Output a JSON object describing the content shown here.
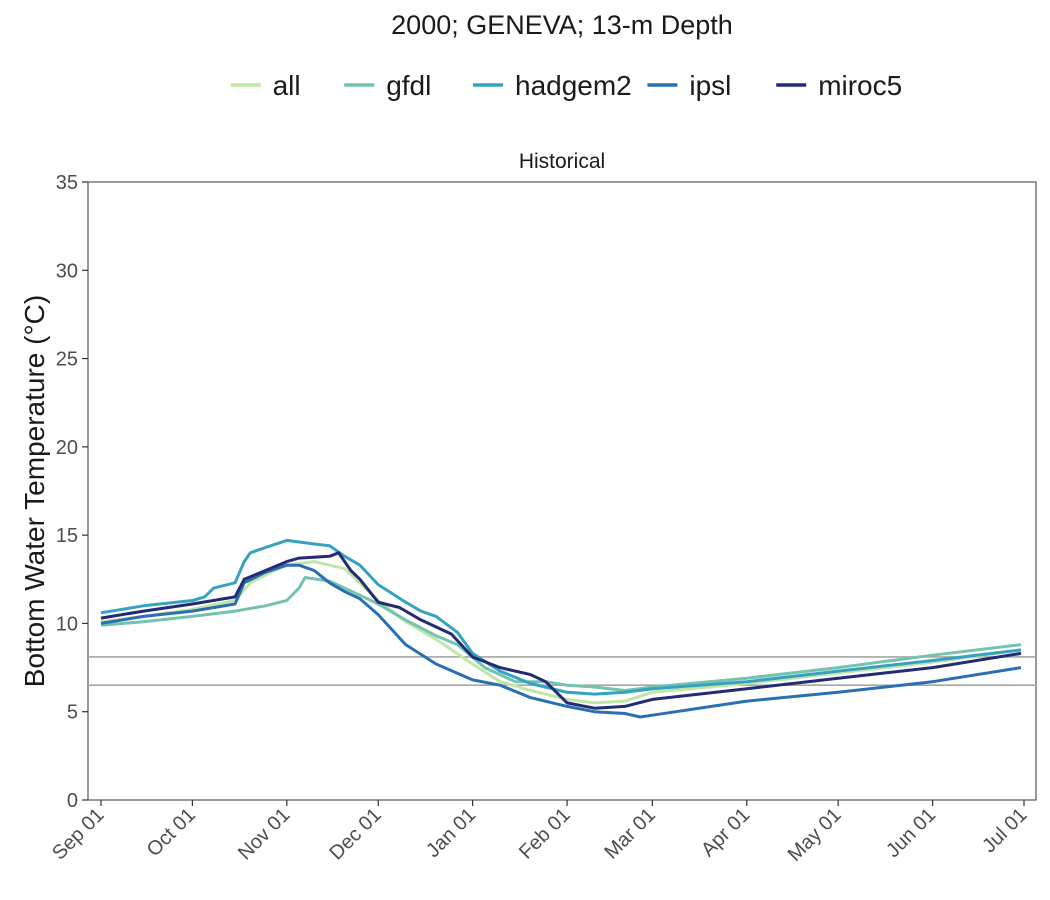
{
  "chart_data": {
    "type": "line",
    "title": "2000; GENEVA; 13-m Depth",
    "panel": "Historical",
    "ylabel": "Bottom Water Temperature (°C)",
    "xlabel": "",
    "x_axis": {
      "start": "2000-09-01",
      "end": "2001-07-01",
      "ticks": [
        "2000-09-01",
        "2000-10-01",
        "2000-11-01",
        "2000-12-01",
        "2001-01-01",
        "2001-02-01",
        "2001-03-01",
        "2001-04-01",
        "2001-05-01",
        "2001-06-01",
        "2001-07-01"
      ],
      "tick_labels": [
        "Sep 01",
        "Oct 01",
        "Nov 01",
        "Dec 01",
        "Jan 01",
        "Feb 01",
        "Mar 01",
        "Apr 01",
        "May 01",
        "Jun 01",
        "Jul 01"
      ]
    },
    "ylim": [
      0,
      35
    ],
    "yticks": [
      0,
      5,
      10,
      15,
      20,
      25,
      30,
      35
    ],
    "reference_lines": [
      8.1,
      6.5
    ],
    "legend_position": "top",
    "grid": false,
    "series": [
      {
        "name": "all",
        "color": "#c1e5a7",
        "points": [
          [
            "2000-09-01",
            10.1
          ],
          [
            "2000-09-15",
            10.4
          ],
          [
            "2000-10-01",
            10.8
          ],
          [
            "2000-10-15",
            11.3
          ],
          [
            "2000-10-20",
            12.3
          ],
          [
            "2000-10-28",
            13.0
          ],
          [
            "2000-11-01",
            13.3
          ],
          [
            "2000-11-10",
            13.5
          ],
          [
            "2000-11-20",
            13.1
          ],
          [
            "2000-12-01",
            11.3
          ],
          [
            "2000-12-10",
            10.1
          ],
          [
            "2000-12-20",
            9.1
          ],
          [
            "2001-01-01",
            7.7
          ],
          [
            "2001-01-10",
            6.7
          ],
          [
            "2001-01-20",
            6.2
          ],
          [
            "2001-02-01",
            5.7
          ],
          [
            "2001-02-10",
            5.5
          ],
          [
            "2001-02-20",
            5.6
          ],
          [
            "2001-03-01",
            6.1
          ],
          [
            "2001-04-01",
            6.6
          ],
          [
            "2001-05-01",
            7.2
          ],
          [
            "2001-06-01",
            7.8
          ],
          [
            "2001-06-30",
            8.5
          ]
        ]
      },
      {
        "name": "gfdl",
        "color": "#73c3b0",
        "points": [
          [
            "2000-09-01",
            9.9
          ],
          [
            "2000-09-15",
            10.1
          ],
          [
            "2000-10-01",
            10.4
          ],
          [
            "2000-10-15",
            10.7
          ],
          [
            "2000-10-25",
            11.0
          ],
          [
            "2000-11-01",
            11.3
          ],
          [
            "2000-11-05",
            12.0
          ],
          [
            "2000-11-07",
            12.6
          ],
          [
            "2000-11-15",
            12.4
          ],
          [
            "2000-11-25",
            11.6
          ],
          [
            "2000-12-01",
            11.1
          ],
          [
            "2000-12-10",
            10.2
          ],
          [
            "2000-12-20",
            9.3
          ],
          [
            "2000-12-27",
            8.8
          ],
          [
            "2001-01-05",
            7.5
          ],
          [
            "2001-01-15",
            6.7
          ],
          [
            "2001-01-25",
            6.7
          ],
          [
            "2001-02-01",
            6.5
          ],
          [
            "2001-02-10",
            6.4
          ],
          [
            "2001-02-20",
            6.2
          ],
          [
            "2001-03-01",
            6.4
          ],
          [
            "2001-04-01",
            6.9
          ],
          [
            "2001-05-01",
            7.5
          ],
          [
            "2001-06-01",
            8.2
          ],
          [
            "2001-06-30",
            8.8
          ]
        ]
      },
      {
        "name": "hadgem2",
        "color": "#35a3c0",
        "points": [
          [
            "2000-09-01",
            10.6
          ],
          [
            "2000-09-15",
            11.0
          ],
          [
            "2000-10-01",
            11.3
          ],
          [
            "2000-10-05",
            11.5
          ],
          [
            "2000-10-08",
            12.0
          ],
          [
            "2000-10-15",
            12.3
          ],
          [
            "2000-10-18",
            13.5
          ],
          [
            "2000-10-20",
            14.0
          ],
          [
            "2000-10-25",
            14.3
          ],
          [
            "2000-11-01",
            14.7
          ],
          [
            "2000-11-10",
            14.5
          ],
          [
            "2000-11-15",
            14.4
          ],
          [
            "2000-11-20",
            13.8
          ],
          [
            "2000-11-25",
            13.3
          ],
          [
            "2000-12-01",
            12.2
          ],
          [
            "2000-12-10",
            11.2
          ],
          [
            "2000-12-15",
            10.7
          ],
          [
            "2000-12-20",
            10.4
          ],
          [
            "2000-12-27",
            9.5
          ],
          [
            "2001-01-01",
            8.3
          ],
          [
            "2001-01-10",
            7.3
          ],
          [
            "2001-01-20",
            6.6
          ],
          [
            "2001-02-01",
            6.1
          ],
          [
            "2001-02-10",
            6.0
          ],
          [
            "2001-02-20",
            6.1
          ],
          [
            "2001-03-01",
            6.3
          ],
          [
            "2001-04-01",
            6.7
          ],
          [
            "2001-05-01",
            7.3
          ],
          [
            "2001-06-01",
            7.9
          ],
          [
            "2001-06-30",
            8.5
          ]
        ]
      },
      {
        "name": "ipsl",
        "color": "#2a6fb1",
        "points": [
          [
            "2000-09-01",
            10.0
          ],
          [
            "2000-09-15",
            10.4
          ],
          [
            "2000-10-01",
            10.7
          ],
          [
            "2000-10-15",
            11.1
          ],
          [
            "2000-10-18",
            12.3
          ],
          [
            "2000-10-25",
            12.9
          ],
          [
            "2000-11-01",
            13.3
          ],
          [
            "2000-11-05",
            13.3
          ],
          [
            "2000-11-10",
            13.0
          ],
          [
            "2000-11-15",
            12.3
          ],
          [
            "2000-11-20",
            11.8
          ],
          [
            "2000-11-25",
            11.4
          ],
          [
            "2000-12-01",
            10.5
          ],
          [
            "2000-12-10",
            8.8
          ],
          [
            "2000-12-20",
            7.7
          ],
          [
            "2001-01-01",
            6.8
          ],
          [
            "2001-01-10",
            6.5
          ],
          [
            "2001-01-20",
            5.8
          ],
          [
            "2001-02-01",
            5.3
          ],
          [
            "2001-02-10",
            5.0
          ],
          [
            "2001-02-20",
            4.9
          ],
          [
            "2001-02-25",
            4.7
          ],
          [
            "2001-03-01",
            4.8
          ],
          [
            "2001-04-01",
            5.6
          ],
          [
            "2001-05-01",
            6.1
          ],
          [
            "2001-06-01",
            6.7
          ],
          [
            "2001-06-30",
            7.5
          ]
        ]
      },
      {
        "name": "miroc5",
        "color": "#232b74",
        "points": [
          [
            "2000-09-01",
            10.3
          ],
          [
            "2000-09-15",
            10.7
          ],
          [
            "2000-10-01",
            11.1
          ],
          [
            "2000-10-15",
            11.5
          ],
          [
            "2000-10-18",
            12.5
          ],
          [
            "2000-10-25",
            13.0
          ],
          [
            "2000-11-01",
            13.5
          ],
          [
            "2000-11-05",
            13.7
          ],
          [
            "2000-11-15",
            13.8
          ],
          [
            "2000-11-18",
            14.0
          ],
          [
            "2000-11-22",
            13.0
          ],
          [
            "2000-11-25",
            12.5
          ],
          [
            "2000-12-01",
            11.2
          ],
          [
            "2000-12-08",
            10.9
          ],
          [
            "2000-12-15",
            10.2
          ],
          [
            "2000-12-25",
            9.4
          ],
          [
            "2001-01-01",
            8.1
          ],
          [
            "2001-01-10",
            7.5
          ],
          [
            "2001-01-20",
            7.1
          ],
          [
            "2001-01-25",
            6.7
          ],
          [
            "2001-02-01",
            5.5
          ],
          [
            "2001-02-10",
            5.2
          ],
          [
            "2001-02-20",
            5.3
          ],
          [
            "2001-03-01",
            5.7
          ],
          [
            "2001-04-01",
            6.3
          ],
          [
            "2001-05-01",
            6.9
          ],
          [
            "2001-06-01",
            7.5
          ],
          [
            "2001-06-30",
            8.3
          ]
        ]
      }
    ]
  }
}
